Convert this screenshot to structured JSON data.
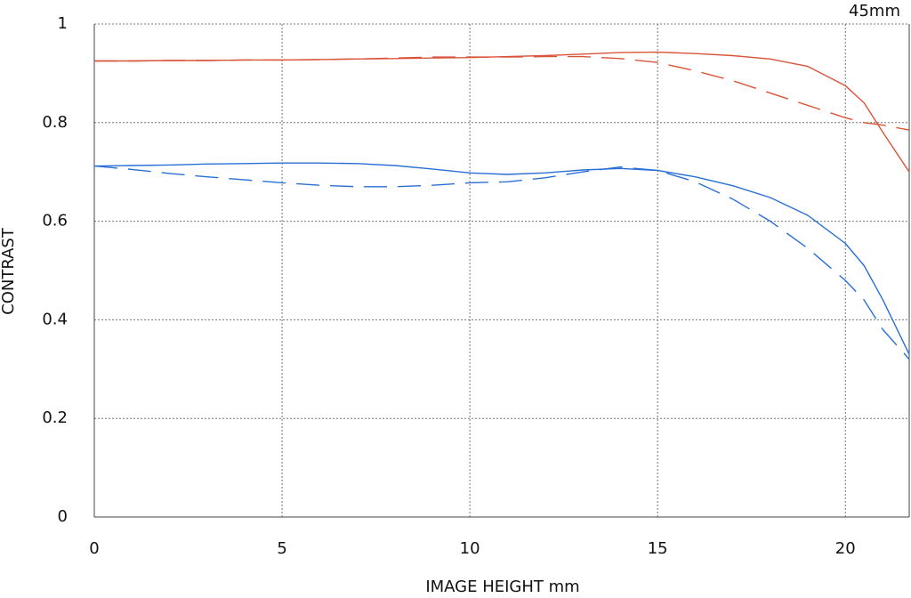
{
  "chart_data": {
    "type": "line",
    "title": "45mm",
    "x_label": "IMAGE HEIGHT  mm",
    "y_label": "CONTRAST",
    "x": [
      0,
      1,
      2,
      3,
      4,
      5,
      6,
      7,
      8,
      9,
      10,
      11,
      12,
      13,
      14,
      15,
      16,
      17,
      18,
      19,
      20,
      20.5,
      21,
      21.7
    ],
    "series": [
      {
        "color": "#d9553a",
        "dashed": false,
        "values": [
          0.925,
          0.925,
          0.926,
          0.926,
          0.927,
          0.927,
          0.928,
          0.929,
          0.93,
          0.931,
          0.932,
          0.934,
          0.936,
          0.939,
          0.942,
          0.943,
          0.94,
          0.936,
          0.929,
          0.914,
          0.875,
          0.84,
          0.78,
          0.7
        ]
      },
      {
        "color": "#d9553a",
        "dashed": true,
        "values": [
          0.925,
          0.925,
          0.926,
          0.926,
          0.927,
          0.927,
          0.928,
          0.929,
          0.931,
          0.933,
          0.933,
          0.933,
          0.934,
          0.934,
          0.93,
          0.922,
          0.905,
          0.885,
          0.86,
          0.835,
          0.81,
          0.8,
          0.795,
          0.785
        ]
      },
      {
        "color": "#2a6fd6",
        "dashed": false,
        "values": [
          0.712,
          0.713,
          0.714,
          0.716,
          0.717,
          0.718,
          0.718,
          0.717,
          0.713,
          0.706,
          0.698,
          0.695,
          0.698,
          0.704,
          0.707,
          0.703,
          0.69,
          0.672,
          0.648,
          0.612,
          0.555,
          0.51,
          0.44,
          0.33
        ]
      },
      {
        "color": "#2a6fd6",
        "dashed": true,
        "values": [
          0.712,
          0.705,
          0.697,
          0.69,
          0.684,
          0.678,
          0.673,
          0.67,
          0.67,
          0.673,
          0.678,
          0.68,
          0.688,
          0.7,
          0.71,
          0.703,
          0.68,
          0.645,
          0.6,
          0.545,
          0.48,
          0.44,
          0.38,
          0.32
        ]
      }
    ],
    "xlim": [
      0,
      21.7
    ],
    "xticks": [
      0,
      5,
      10,
      15,
      20
    ],
    "ylim": [
      0,
      1
    ],
    "yticks": [
      0,
      0.2,
      0.4,
      0.6,
      0.8,
      1
    ],
    "grid": true
  }
}
